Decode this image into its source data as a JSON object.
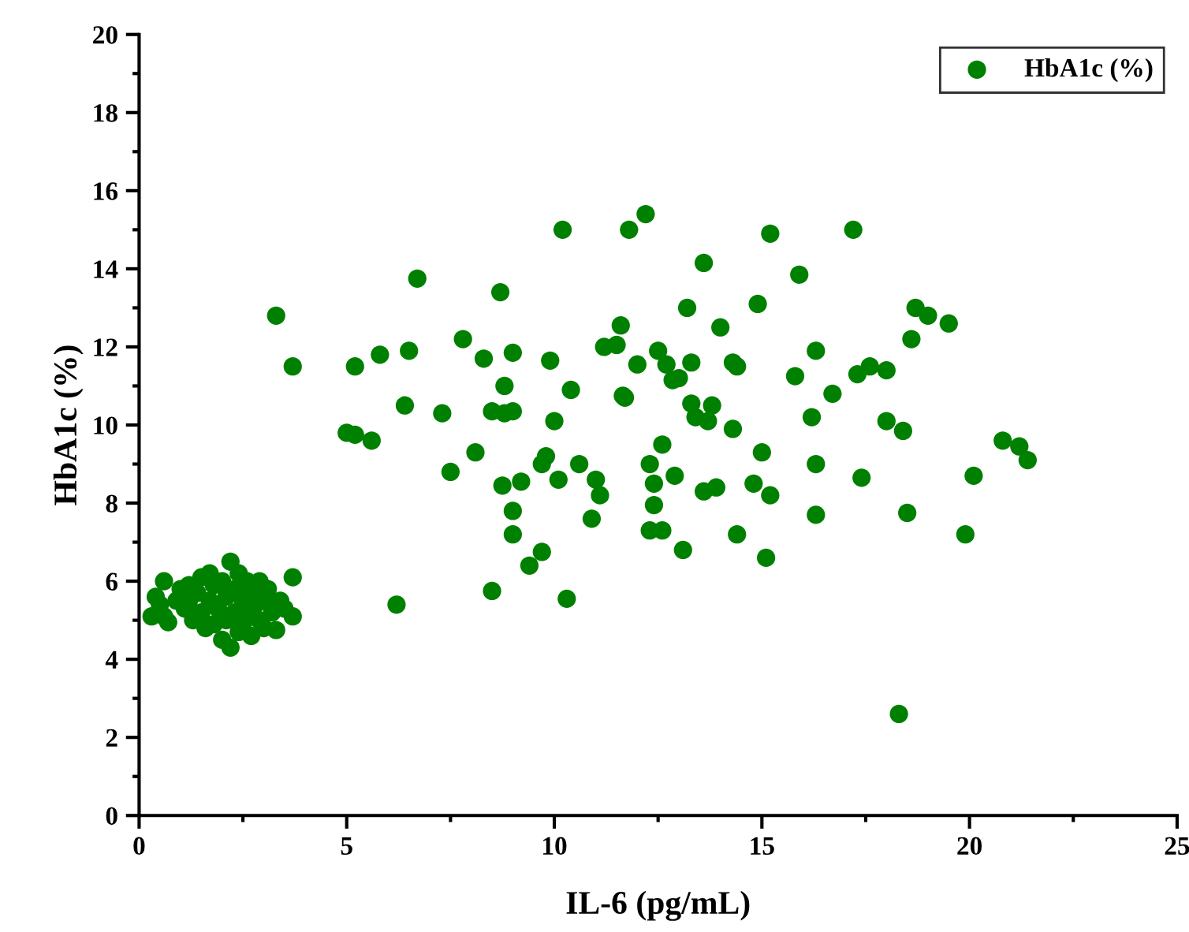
{
  "chart_data": {
    "type": "scatter",
    "xlabel": "IL-6 (pg/mL)",
    "ylabel": "HbA1c (%)",
    "xlim": [
      0,
      25
    ],
    "ylim": [
      0,
      20
    ],
    "xticks": [
      0,
      5,
      10,
      15,
      20,
      25
    ],
    "yticks": [
      0,
      2,
      4,
      6,
      8,
      10,
      12,
      14,
      16,
      18,
      20
    ],
    "legend": "top right",
    "marker": "circle",
    "grid": false,
    "series": [
      {
        "name": "HbA1c (%)",
        "color": "#008000",
        "x": [
          3.3,
          3.7,
          5.0,
          5.2,
          5.2,
          5.6,
          5.8,
          6.2,
          6.4,
          6.5,
          6.7,
          7.3,
          7.5,
          7.8,
          8.1,
          8.3,
          8.5,
          8.5,
          8.7,
          8.8,
          8.8,
          8.75,
          9.0,
          9.0,
          9.0,
          9.0,
          9.2,
          9.4,
          9.7,
          9.7,
          9.8,
          9.9,
          10.0,
          10.1,
          10.2,
          10.3,
          10.4,
          10.6,
          10.9,
          11.0,
          11.1,
          11.2,
          11.5,
          11.6,
          11.65,
          11.7,
          11.8,
          12.0,
          12.2,
          12.3,
          12.3,
          12.4,
          12.4,
          12.5,
          12.6,
          12.6,
          12.7,
          12.9,
          12.85,
          13.0,
          13.1,
          13.2,
          13.3,
          13.3,
          13.4,
          13.6,
          13.6,
          13.7,
          13.8,
          13.9,
          14.0,
          14.3,
          14.4,
          14.4,
          14.3,
          14.8,
          14.9,
          15.0,
          15.1,
          15.2,
          15.2,
          15.8,
          15.9,
          16.2,
          16.3,
          16.3,
          16.3,
          16.7,
          17.2,
          17.3,
          17.4,
          17.6,
          18.0,
          18.0,
          18.3,
          18.4,
          18.5,
          18.6,
          18.7,
          19.0,
          19.5,
          19.9,
          20.1,
          20.8,
          21.2,
          21.4,
          0.3,
          0.4,
          0.5,
          0.6,
          0.6,
          0.7,
          0.9,
          1.0,
          1.1,
          1.2,
          1.3,
          1.4,
          1.5,
          1.5,
          1.6,
          1.7,
          1.7,
          1.8,
          1.8,
          1.9,
          2.0,
          2.0,
          2.1,
          2.1,
          2.2,
          2.2,
          2.3,
          2.3,
          2.4,
          2.4,
          2.5,
          2.5,
          2.6,
          2.6,
          2.7,
          2.7,
          2.8,
          2.9,
          2.9,
          3.0,
          3.0,
          3.1,
          3.2,
          3.3,
          3.4,
          3.5,
          3.7,
          3.7,
          1.2
        ],
        "values": [
          12.8,
          11.5,
          9.8,
          9.75,
          11.5,
          9.6,
          11.8,
          5.4,
          10.5,
          11.9,
          13.75,
          10.3,
          8.8,
          12.2,
          9.3,
          11.7,
          10.35,
          5.75,
          13.4,
          11.0,
          10.3,
          8.45,
          11.85,
          10.35,
          7.8,
          7.2,
          8.55,
          6.4,
          9.0,
          6.75,
          9.2,
          11.65,
          10.1,
          8.6,
          15.0,
          5.55,
          10.9,
          9.0,
          7.6,
          8.6,
          8.2,
          12.0,
          12.05,
          12.55,
          10.75,
          10.7,
          15.0,
          11.55,
          15.4,
          9.0,
          7.3,
          8.5,
          7.95,
          11.9,
          9.5,
          7.3,
          11.55,
          8.7,
          11.15,
          11.2,
          6.8,
          13.0,
          10.55,
          11.6,
          10.2,
          14.15,
          8.3,
          10.1,
          10.5,
          8.4,
          12.5,
          11.6,
          11.5,
          7.2,
          9.9,
          8.5,
          13.1,
          9.3,
          6.6,
          14.9,
          8.2,
          11.25,
          13.85,
          10.2,
          11.9,
          9.0,
          7.7,
          10.8,
          15.0,
          11.3,
          8.65,
          11.5,
          11.4,
          10.1,
          2.6,
          9.85,
          7.75,
          12.2,
          13.0,
          12.8,
          12.6,
          7.2,
          8.7,
          9.6,
          9.45,
          9.1,
          5.1,
          5.6,
          5.4,
          6.0,
          5.1,
          4.95,
          5.5,
          5.8,
          5.3,
          5.9,
          5.0,
          5.7,
          6.1,
          5.2,
          4.8,
          6.2,
          5.5,
          4.9,
          5.9,
          5.3,
          6.0,
          4.5,
          5.6,
          5.0,
          6.5,
          4.3,
          5.8,
          5.2,
          4.7,
          6.2,
          5.5,
          4.9,
          6.0,
          5.2,
          4.6,
          5.7,
          5.4,
          5.0,
          6.0,
          5.5,
          4.8,
          5.8,
          5.2,
          4.75,
          5.5,
          5.3,
          6.1,
          5.1,
          5.5
        ]
      }
    ]
  }
}
